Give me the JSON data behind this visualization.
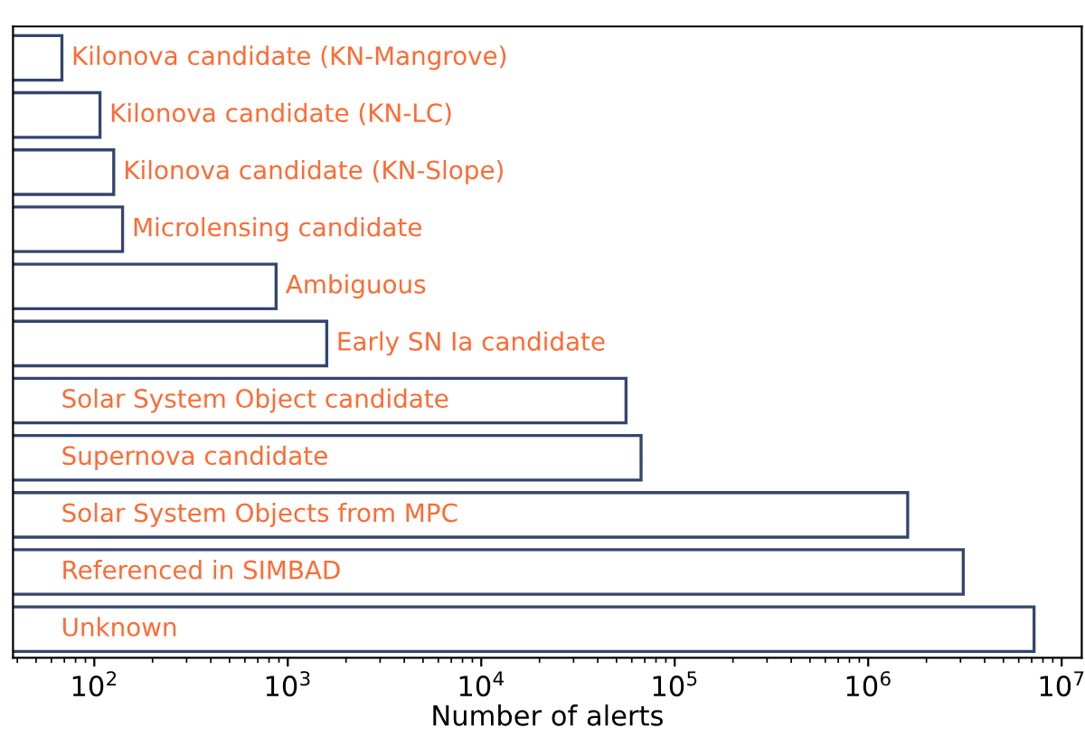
{
  "chart_data": {
    "type": "bar",
    "orientation": "horizontal",
    "xlabel": "Number of alerts",
    "categories": [
      "Kilonova candidate (KN-Mangrove)",
      "Kilonova candidate (KN-LC)",
      "Kilonova candidate (KN-Slope)",
      "Microlensing candidate",
      "Ambiguous",
      "Early SN Ia candidate",
      "Solar System Object candidate",
      "Supernova candidate",
      "Solar System Objects from MPC",
      "Referenced in SIMBAD",
      "Unknown"
    ],
    "series": [
      {
        "color": "#34456e",
        "values": [
          68,
          107,
          126,
          140,
          870,
          1590,
          56000,
          67000,
          1600000,
          3100000,
          7200000
        ]
      }
    ],
    "log": "x",
    "xlim": [
      38,
      12700000
    ],
    "xticks": [
      {
        "value": 100,
        "label": "10$^{2}$"
      },
      {
        "value": 1000,
        "label": "10$^{3}$"
      },
      {
        "value": 10000,
        "label": "10$^{4}$"
      },
      {
        "value": 100000,
        "label": "10$^{5}$"
      },
      {
        "value": 1000000,
        "label": "10$^{6}$"
      },
      {
        "value": 10000000,
        "label": "10$^{7}$"
      }
    ],
    "tick_labels": "x",
    "grid": false,
    "legend": false
  }
}
